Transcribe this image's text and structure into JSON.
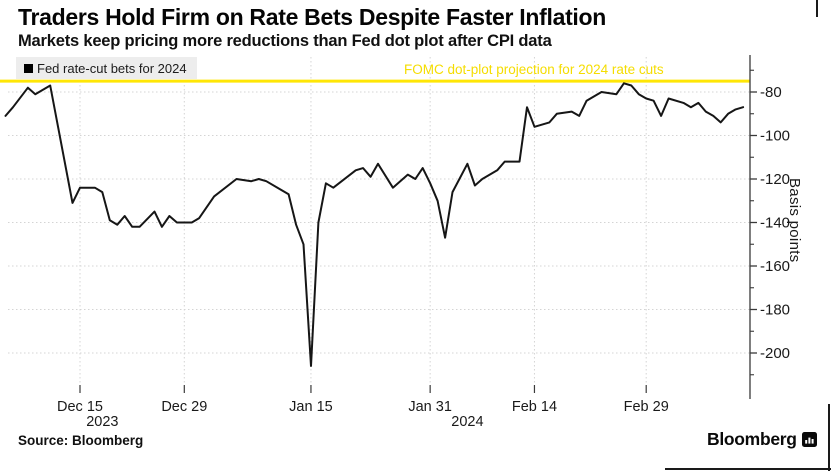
{
  "header": {
    "title": "Traders Hold Firm on Rate Bets Despite Faster Inflation",
    "subtitle": "Markets keep pricing more reductions than Fed dot plot after CPI data"
  },
  "legend": {
    "label": "Fed rate-cut bets for 2024",
    "swatch_color": "#000000",
    "background": "#ededed"
  },
  "annotation": {
    "label": "FOMC dot-plot projection for 2024 rate cuts",
    "color": "#f5dd00",
    "value_bp": -75
  },
  "y_axis": {
    "unit_label": "Basis points",
    "major_ticks": [
      -80,
      -100,
      -120,
      -140,
      -160,
      -180,
      -200
    ],
    "minor_ticks": [
      -70,
      -90,
      -110,
      -130,
      -150,
      -170,
      -190,
      -210
    ]
  },
  "x_axis": {
    "ticks": [
      {
        "label": "Dec 15",
        "date": "2023-12-15"
      },
      {
        "label": "Dec 29",
        "date": "2023-12-29"
      },
      {
        "label": "Jan 15",
        "date": "2024-01-15"
      },
      {
        "label": "Jan 31",
        "date": "2024-01-31"
      },
      {
        "label": "Feb 14",
        "date": "2024-02-14"
      },
      {
        "label": "Feb 29",
        "date": "2024-02-29"
      }
    ],
    "year_labels": [
      {
        "label": "2023",
        "date": "2023-12-18"
      },
      {
        "label": "2024",
        "date": "2024-02-05"
      }
    ]
  },
  "source": "Source: Bloomberg",
  "branding": {
    "wordmark": "Bloomberg",
    "icon": "bloomberg-terminal-icon"
  },
  "colors": {
    "line": "#161616",
    "reference": "#ffe606",
    "grid": "#d4d4d4",
    "axis": "#3a3a3a",
    "text": "#1a1a1a",
    "legend_bg": "#ededed"
  },
  "chart_data": {
    "type": "line",
    "title": "Traders Hold Firm on Rate Bets Despite Faster Inflation",
    "subtitle": "Markets keep pricing more reductions than Fed dot plot after CPI data",
    "ylabel": "Basis points",
    "ylim": [
      -215,
      -70
    ],
    "x_range": [
      "2023-12-05",
      "2024-03-13"
    ],
    "grid": true,
    "legend_position": "top-left",
    "x_tick_labels": [
      "Dec 15",
      "Dec 29",
      "Jan 15",
      "Jan 31",
      "Feb 14",
      "Feb 29"
    ],
    "y_tick_labels": [
      "-80",
      "-100",
      "-120",
      "-140",
      "-160",
      "-180",
      "-200"
    ],
    "reference_lines": [
      {
        "label": "FOMC dot-plot projection for 2024 rate cuts",
        "value": -75,
        "color": "#ffe606"
      }
    ],
    "series": [
      {
        "name": "Fed rate-cut bets for 2024",
        "color": "#161616",
        "points": [
          [
            "2023-12-05",
            -91
          ],
          [
            "2023-12-06",
            -87
          ],
          [
            "2023-12-08",
            -78
          ],
          [
            "2023-12-09",
            -81
          ],
          [
            "2023-12-11",
            -77
          ],
          [
            "2023-12-14",
            -131
          ],
          [
            "2023-12-15",
            -124
          ],
          [
            "2023-12-17",
            -124
          ],
          [
            "2023-12-18",
            -126
          ],
          [
            "2023-12-19",
            -139
          ],
          [
            "2023-12-20",
            -141
          ],
          [
            "2023-12-21",
            -137
          ],
          [
            "2023-12-22",
            -142
          ],
          [
            "2023-12-23",
            -142
          ],
          [
            "2023-12-25",
            -135
          ],
          [
            "2023-12-26",
            -142
          ],
          [
            "2023-12-27",
            -137
          ],
          [
            "2023-12-28",
            -140
          ],
          [
            "2023-12-30",
            -140
          ],
          [
            "2023-12-31",
            -138
          ],
          [
            "2024-01-02",
            -128
          ],
          [
            "2024-01-05",
            -120
          ],
          [
            "2024-01-07",
            -121
          ],
          [
            "2024-01-08",
            -120
          ],
          [
            "2024-01-09",
            -121
          ],
          [
            "2024-01-11",
            -125
          ],
          [
            "2024-01-12",
            -127
          ],
          [
            "2024-01-13",
            -141
          ],
          [
            "2024-01-14",
            -150
          ],
          [
            "2024-01-15",
            -206
          ],
          [
            "2024-01-16",
            -140
          ],
          [
            "2024-01-17",
            -122
          ],
          [
            "2024-01-18",
            -124
          ],
          [
            "2024-01-21",
            -116
          ],
          [
            "2024-01-22",
            -115
          ],
          [
            "2024-01-23",
            -119
          ],
          [
            "2024-01-24",
            -113
          ],
          [
            "2024-01-26",
            -124
          ],
          [
            "2024-01-28",
            -118
          ],
          [
            "2024-01-29",
            -120
          ],
          [
            "2024-01-30",
            -115
          ],
          [
            "2024-01-31",
            -122
          ],
          [
            "2024-02-01",
            -130
          ],
          [
            "2024-02-02",
            -147
          ],
          [
            "2024-02-03",
            -126
          ],
          [
            "2024-02-05",
            -113
          ],
          [
            "2024-02-06",
            -123
          ],
          [
            "2024-02-07",
            -120
          ],
          [
            "2024-02-09",
            -116
          ],
          [
            "2024-02-10",
            -112
          ],
          [
            "2024-02-12",
            -112
          ],
          [
            "2024-02-13",
            -87
          ],
          [
            "2024-02-14",
            -96
          ],
          [
            "2024-02-16",
            -94
          ],
          [
            "2024-02-17",
            -90
          ],
          [
            "2024-02-19",
            -89
          ],
          [
            "2024-02-20",
            -91
          ],
          [
            "2024-02-21",
            -84
          ],
          [
            "2024-02-23",
            -80
          ],
          [
            "2024-02-25",
            -81
          ],
          [
            "2024-02-26",
            -76
          ],
          [
            "2024-02-27",
            -77
          ],
          [
            "2024-02-28",
            -81
          ],
          [
            "2024-02-29",
            -83
          ],
          [
            "2024-03-01",
            -84
          ],
          [
            "2024-03-02",
            -91
          ],
          [
            "2024-03-03",
            -83
          ],
          [
            "2024-03-05",
            -85
          ],
          [
            "2024-03-06",
            -87
          ],
          [
            "2024-03-07",
            -85
          ],
          [
            "2024-03-08",
            -89
          ],
          [
            "2024-03-09",
            -91
          ],
          [
            "2024-03-10",
            -94
          ],
          [
            "2024-03-11",
            -90
          ],
          [
            "2024-03-12",
            -88
          ],
          [
            "2024-03-13",
            -87
          ]
        ]
      }
    ]
  }
}
